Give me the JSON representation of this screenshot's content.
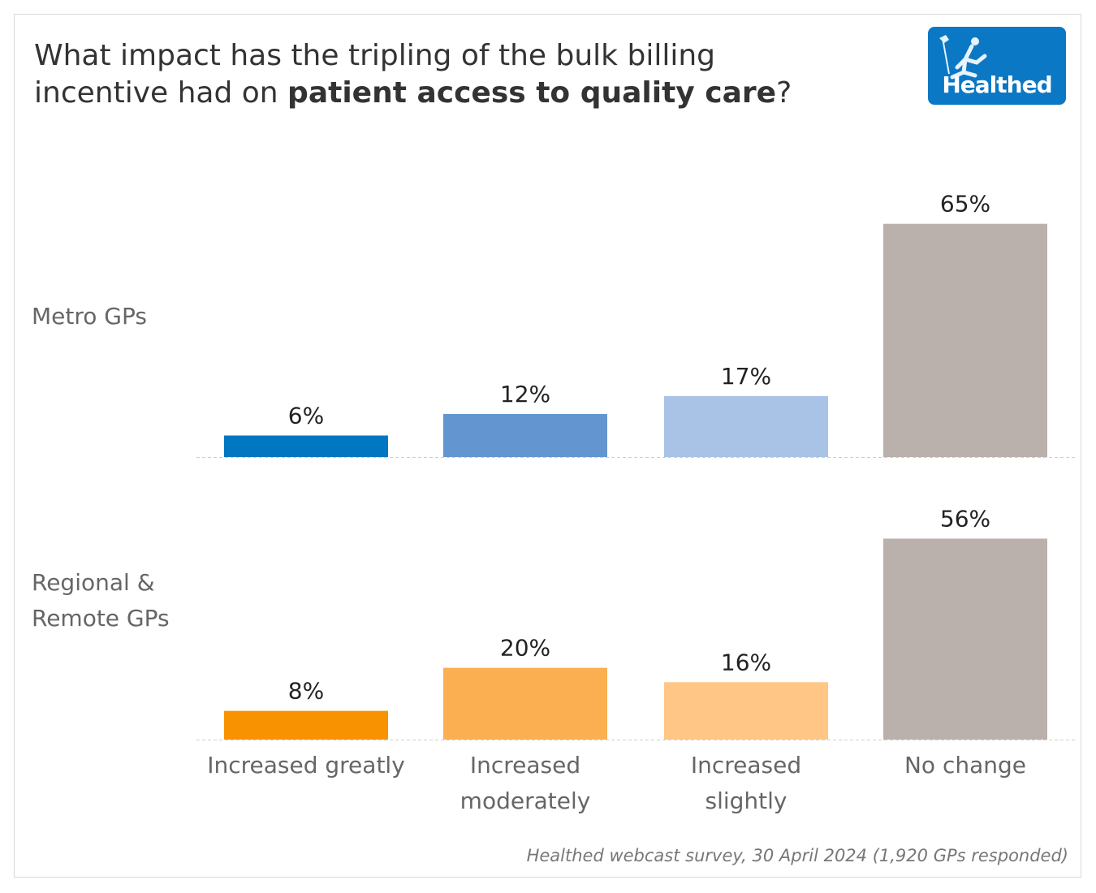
{
  "chart_data": {
    "type": "bar",
    "title_parts": [
      {
        "text": "What impact has the tripling of the bulk billing",
        "bold": false
      },
      {
        "text": "incentive had on ",
        "bold": false
      },
      {
        "text": "patient access to quality care",
        "bold": true
      },
      {
        "text": "?",
        "bold": false
      }
    ],
    "categories": [
      "Increased greatly",
      "Increased moderately",
      "Increased slightly",
      "No change"
    ],
    "category_label_lines": [
      [
        "Increased greatly"
      ],
      [
        "Increased",
        "moderately"
      ],
      [
        "Increased",
        "slightly"
      ],
      [
        "No change"
      ]
    ],
    "series": [
      {
        "name": "Metro GPs",
        "label_lines": [
          "Metro GPs"
        ],
        "values": [
          6,
          12,
          17,
          65
        ],
        "colors": [
          "#0077c0",
          "#6396d0",
          "#a9c3e6",
          "#bab0ac"
        ]
      },
      {
        "name": "Regional & Remote GPs",
        "label_lines": [
          "Regional &",
          "Remote GPs"
        ],
        "values": [
          8,
          20,
          16,
          56
        ],
        "colors": [
          "#f99200",
          "#fbaf50",
          "#ffc686",
          "#bab0ac"
        ]
      }
    ],
    "value_suffix": "%",
    "ylim": [
      0,
      65
    ],
    "grid": false,
    "source": "Healthed webcast survey, 30 April 2024 (1,920 GPs responded)"
  },
  "logo": {
    "text": "Healthed"
  }
}
